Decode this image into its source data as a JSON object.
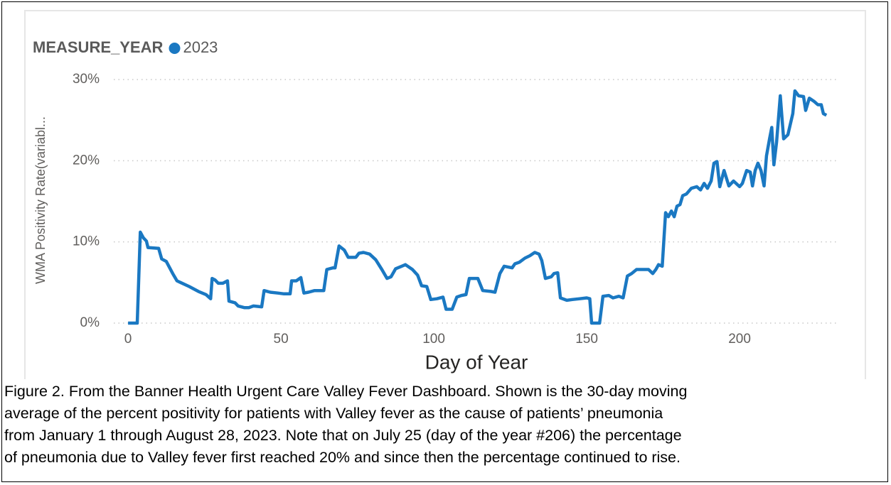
{
  "chart_data": {
    "type": "line",
    "legend_title": "MEASURE_YEAR",
    "xlabel": "Day of Year",
    "ylabel": "WMA Positivity Rate(variabl...",
    "x": [
      0,
      3,
      4,
      5,
      6,
      6.5,
      10,
      11,
      12.5,
      14.6,
      16,
      20,
      23,
      25.5,
      27,
      27.5,
      28.5,
      29.5,
      31,
      32.5,
      33,
      35,
      36,
      38,
      39.5,
      41,
      43.7,
      44.5,
      46.5,
      49,
      51,
      53,
      53.5,
      55,
      56.5,
      57.5,
      59,
      61,
      64,
      65,
      67,
      67.7,
      69,
      70.7,
      72,
      74.5,
      75.5,
      77,
      79,
      81,
      83,
      84.7,
      86,
      87.5,
      89.5,
      90.7,
      93,
      94.7,
      96,
      97.7,
      99,
      101,
      103,
      104,
      106,
      107.5,
      109,
      110.5,
      111.6,
      114.4,
      116,
      118.6,
      120,
      121.6,
      123,
      125.6,
      126.5,
      128,
      129.8,
      131.4,
      133,
      134.4,
      135.3,
      136.5,
      138.4,
      139.3,
      140.5,
      141.4,
      143.5,
      145.3,
      147.7,
      150,
      151,
      151.6,
      154.2,
      155.3,
      157.2,
      158.6,
      160.5,
      161.9,
      163.3,
      164.7,
      166.3,
      168.6,
      170.2,
      171.6,
      172.6,
      173.5,
      174.7,
      175.8,
      176.7,
      177.7,
      178.6,
      179.5,
      180.5,
      181.4,
      182.6,
      184.2,
      186,
      187.2,
      188.4,
      189.5,
      190.7,
      191.6,
      192.6,
      193.5,
      194.9,
      196.5,
      198,
      200,
      200.9,
      202.3,
      203.5,
      204.2,
      205.1,
      206,
      207,
      208,
      208.8,
      209.8,
      210.5,
      211.2,
      212.1,
      213.3,
      214.4,
      215.8,
      217.4,
      218.1,
      219.3,
      220.9,
      221.6,
      222.8,
      224.4,
      225.6,
      226.7,
      227.4,
      228.4
    ],
    "series": [
      {
        "name": "2023",
        "color": "#1a78c2",
        "values": [
          0,
          0,
          11.2,
          10.5,
          10.1,
          9.3,
          9.2,
          7.9,
          7.6,
          6.1,
          5.2,
          4.5,
          3.9,
          3.5,
          3.0,
          5.5,
          5.3,
          4.9,
          4.9,
          5.2,
          2.7,
          2.5,
          2.1,
          1.9,
          1.9,
          2.1,
          2.0,
          4.0,
          3.8,
          3.7,
          3.6,
          3.6,
          5.2,
          5.2,
          5.6,
          3.7,
          3.8,
          4.0,
          4.0,
          6.6,
          6.8,
          6.8,
          9.5,
          9.0,
          8.1,
          8.1,
          8.6,
          8.7,
          8.5,
          7.8,
          6.6,
          5.5,
          5.7,
          6.7,
          7.0,
          7.2,
          6.6,
          5.9,
          4.6,
          4.5,
          2.9,
          3.0,
          3.2,
          1.7,
          1.7,
          3.2,
          3.4,
          3.5,
          5.5,
          5.5,
          4.0,
          3.9,
          3.8,
          6.1,
          7.0,
          6.8,
          7.3,
          7.5,
          8.0,
          8.3,
          8.7,
          8.5,
          7.7,
          5.5,
          5.7,
          6.1,
          6.2,
          3.1,
          2.8,
          2.9,
          3.0,
          3.1,
          3.0,
          0,
          0,
          3.3,
          3.4,
          3.1,
          3.3,
          3.1,
          5.8,
          6.1,
          6.6,
          6.6,
          6.6,
          6.1,
          6.6,
          7.2,
          7.0,
          13.6,
          13.1,
          13.8,
          13.1,
          14.4,
          14.6,
          15.7,
          15.9,
          16.6,
          16.8,
          16.4,
          17.2,
          16.6,
          17.5,
          19.7,
          19.9,
          16.8,
          18.8,
          16.9,
          17.5,
          16.8,
          17.2,
          18.8,
          18.6,
          16.9,
          18.8,
          19.7,
          18.8,
          16.9,
          20.6,
          22.7,
          24.1,
          19.5,
          22.3,
          28.0,
          22.7,
          23.2,
          25.8,
          28.6,
          28.0,
          27.9,
          26.2,
          27.7,
          27.3,
          26.9,
          26.9,
          25.8,
          25.6
        ]
      }
    ],
    "xlim": [
      -5,
      233
    ],
    "xticks": [
      0,
      50,
      100,
      150,
      200
    ],
    "ylim": [
      -1.5,
      31
    ],
    "yticks": [
      {
        "value": 0,
        "label": "0%"
      },
      {
        "value": 10,
        "label": "10%"
      },
      {
        "value": 20,
        "label": "20%"
      },
      {
        "value": 30,
        "label": "30%"
      }
    ],
    "grid": true
  },
  "caption": {
    "lines": [
      "Figure 2. From the Banner Health Urgent Care Valley Fever Dashboard. Shown is the 30-day moving",
      "average of the percent positivity for patients with Valley fever as the cause of patients’ pneumonia",
      "from January 1 through August 28, 2023.  Note that on July 25 (day of the year #206) the percentage",
      "of pneumonia due to Valley fever first reached 20% and since then the percentage continued to rise."
    ]
  }
}
